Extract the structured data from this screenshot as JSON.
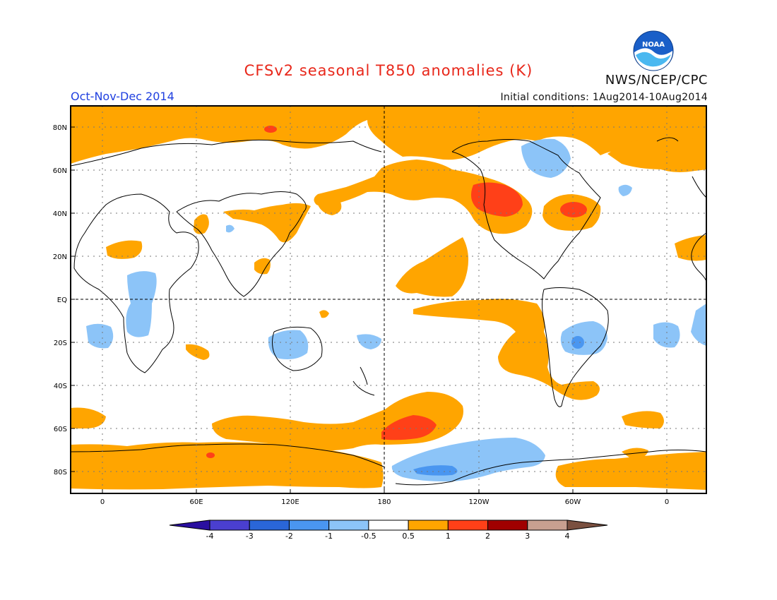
{
  "title": "CFSv2 seasonal T850 anomalies (K)",
  "season": "Oct-Nov-Dec 2014",
  "initial_conditions": "Initial conditions: 1Aug2014-10Aug2014",
  "agency": "NWS/NCEP/CPC",
  "logo_text": "NOAA",
  "lat_labels": [
    "80N",
    "60N",
    "40N",
    "20N",
    "EQ",
    "20S",
    "40S",
    "60S",
    "80S"
  ],
  "lon_labels": [
    "0",
    "60E",
    "120E",
    "180",
    "120W",
    "60W",
    "0"
  ],
  "colorbar": {
    "labels": [
      "-4",
      "-3",
      "-2",
      "-1",
      "-0.5",
      "0.5",
      "1",
      "2",
      "3",
      "4"
    ],
    "colors": [
      "#2a0fa0",
      "#4a3fd0",
      "#2a66d8",
      "#4a96f0",
      "#8cc4f8",
      "#ffffff",
      "#ffa500",
      "#ff4018",
      "#a00000",
      "#c8a090",
      "#7a5040"
    ]
  },
  "anomaly_colors": {
    "warm_0_5_to_1": "#ffa500",
    "warm_1_to_2": "#ff4018",
    "cool_neg1_to_neg0_5": "#8cc4f8",
    "cool_neg2_to_neg1": "#4a96f0"
  }
}
